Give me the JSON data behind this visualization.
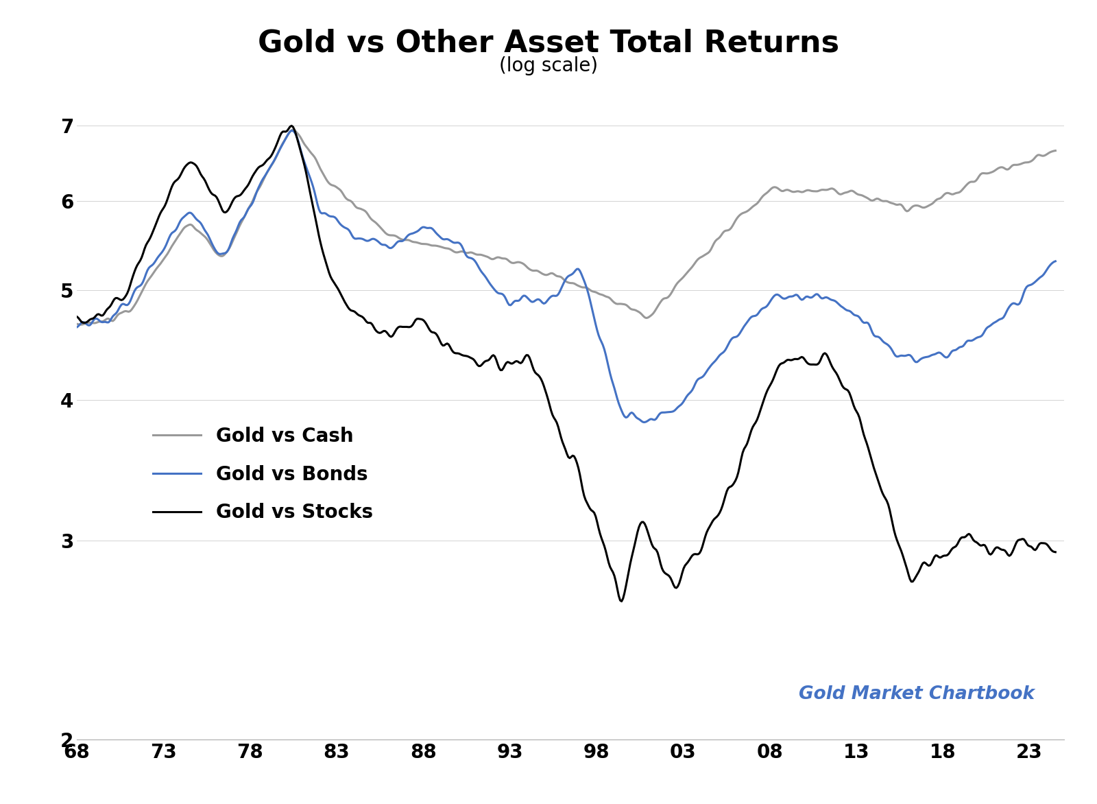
{
  "title": "Gold vs Other Asset Total Returns",
  "subtitle": "(log scale)",
  "watermark": "Gold Market Chartbook",
  "xticks": [
    1968,
    1973,
    1978,
    1983,
    1988,
    1993,
    1998,
    2003,
    2008,
    2013,
    2018,
    2023
  ],
  "xtick_labels": [
    "68",
    "73",
    "78",
    "83",
    "88",
    "93",
    "98",
    "03",
    "08",
    "13",
    "18",
    "23"
  ],
  "yticks": [
    2,
    3,
    4,
    5,
    6,
    7
  ],
  "ylim": [
    2.0,
    7.8
  ],
  "xlim": [
    1968,
    2025
  ],
  "color_cash": "#999999",
  "color_bonds": "#4472C4",
  "color_stocks": "#000000",
  "legend_labels": [
    "Gold vs Cash",
    "Gold vs Bonds",
    "Gold vs Stocks"
  ],
  "lw": 2.2,
  "title_fontsize": 32,
  "subtitle_fontsize": 20,
  "tick_fontsize": 20,
  "legend_fontsize": 20,
  "watermark_fontsize": 19
}
